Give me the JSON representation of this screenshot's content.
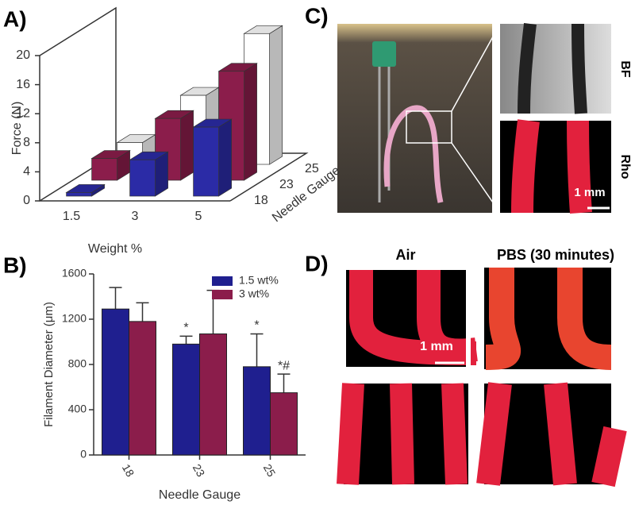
{
  "panel_labels": [
    "A)",
    "B)",
    "C)",
    "D)"
  ],
  "chart_data": [
    {
      "type": "bar3d",
      "categories": [
        "1.5",
        "3",
        "5"
      ],
      "xlabel": "Weight %",
      "ylabel": "Force (N)",
      "zlabel": "Needle Gauge",
      "ylim": [
        0,
        20
      ],
      "yticks": [
        0,
        4,
        8,
        12,
        16,
        20
      ],
      "series": [
        {
          "name": "18",
          "color": "#2b2ba6",
          "values": [
            0.5,
            5,
            9.5
          ]
        },
        {
          "name": "23",
          "color": "#8b1d4b",
          "values": [
            3,
            8.5,
            15
          ]
        },
        {
          "name": "25",
          "color": "#ffffff",
          "values": [
            3,
            9.5,
            18
          ]
        }
      ]
    },
    {
      "type": "bar",
      "categories": [
        "18",
        "23",
        "25"
      ],
      "xlabel": "Needle Gauge",
      "ylabel": "Filament Diameter (μm)",
      "ylim": [
        0,
        1600
      ],
      "yticks": [
        0,
        400,
        800,
        1200,
        1600
      ],
      "legend": "top-right",
      "series": [
        {
          "name": "1.5 wt%",
          "color": "#1f1f8f",
          "values": [
            1290,
            980,
            780
          ],
          "errors": [
            190,
            70,
            290
          ],
          "annotations": [
            null,
            "*",
            "*"
          ]
        },
        {
          "name": "3 wt%",
          "color": "#8b1d4b",
          "values": [
            1180,
            1070,
            550
          ],
          "errors": [
            165,
            385,
            165
          ],
          "annotations": [
            null,
            null,
            "*#"
          ]
        }
      ]
    }
  ],
  "panel_c": {
    "labels": [
      "BF",
      "Rho"
    ],
    "scale_bar": "1 mm"
  },
  "panel_d": {
    "headers": [
      "Air",
      "PBS (30 minutes)"
    ],
    "scale_bar": "1 mm"
  }
}
